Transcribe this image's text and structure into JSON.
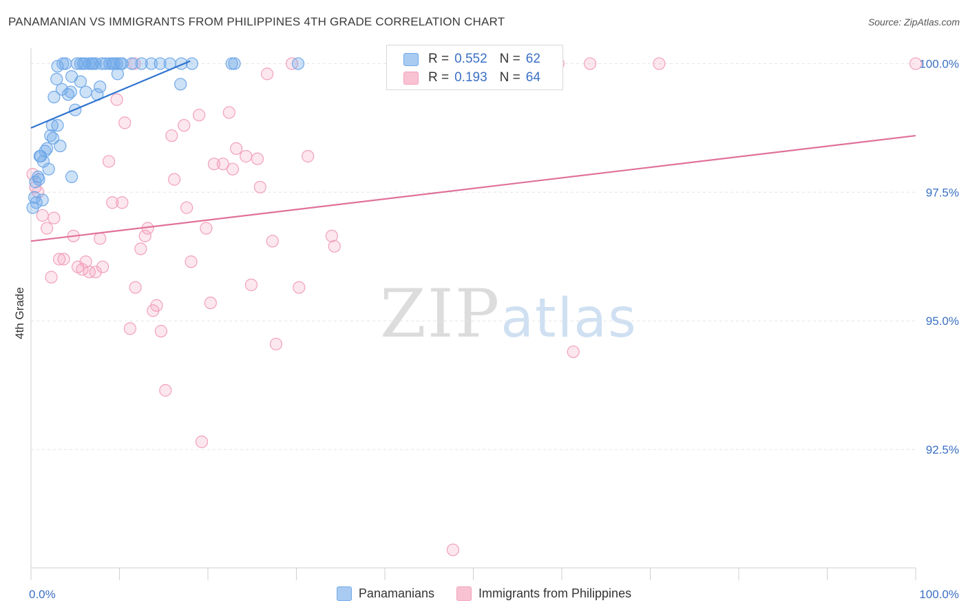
{
  "title": "PANAMANIAN VS IMMIGRANTS FROM PHILIPPINES 4TH GRADE CORRELATION CHART",
  "source": "Source: ZipAtlas.com",
  "watermark": {
    "zip": "ZIP",
    "atlas": "atlas"
  },
  "colors": {
    "blue": "#6fa8e8",
    "blue_line": "#2f74d0",
    "pink": "#f2a0ba",
    "pink_line": "#e0709a",
    "tick_label": "#3a6fc4"
  },
  "legend_top": [
    {
      "r_label": "R =",
      "r": "0.552",
      "n_label": "N =",
      "n": "62",
      "color": "#a9cbf2",
      "border": "#6fa8e8"
    },
    {
      "r_label": "R =",
      "r": "0.193",
      "n_label": "N =",
      "n": "64",
      "color": "#f8c2d2",
      "border": "#f2a0ba"
    }
  ],
  "legend_bottom": [
    {
      "label": "Panamanians",
      "color": "#a9cbf2",
      "border": "#6fa8e8"
    },
    {
      "label": "Immigrants from Philippines",
      "color": "#f8c2d2",
      "border": "#f2a0ba"
    }
  ],
  "chart_data": {
    "type": "scatter",
    "title": "PANAMANIAN VS IMMIGRANTS FROM PHILIPPINES 4TH GRADE CORRELATION CHART",
    "xlabel": "",
    "ylabel": "4th Grade",
    "xlim": [
      0,
      100
    ],
    "ylim": [
      90.2,
      100.3
    ],
    "x_tick_labels": [
      "0.0%",
      "100.0%"
    ],
    "y_ticks": [
      100.0,
      97.5,
      95.0,
      92.5
    ],
    "y_tick_labels": [
      "100.0%",
      "97.5%",
      "95.0%",
      "92.5%"
    ],
    "grid": true,
    "series": [
      {
        "name": "Panamanians",
        "r": 0.552,
        "n": 62,
        "trend": {
          "x": [
            0,
            18
          ],
          "y": [
            98.75,
            100.05
          ]
        },
        "points": [
          [
            0.2,
            97.2
          ],
          [
            0.4,
            97.4
          ],
          [
            0.5,
            97.7
          ],
          [
            0.8,
            97.8
          ],
          [
            1.0,
            98.2
          ],
          [
            1.4,
            98.1
          ],
          [
            1.6,
            98.3
          ],
          [
            2.0,
            97.95
          ],
          [
            1.8,
            98.35
          ],
          [
            2.2,
            98.6
          ],
          [
            2.4,
            98.8
          ],
          [
            2.5,
            98.55
          ],
          [
            3.0,
            98.8
          ],
          [
            3.3,
            98.4
          ],
          [
            2.6,
            99.35
          ],
          [
            3.5,
            99.5
          ],
          [
            4.2,
            99.4
          ],
          [
            4.5,
            99.45
          ],
          [
            4.6,
            99.75
          ],
          [
            5.0,
            99.1
          ],
          [
            5.6,
            99.65
          ],
          [
            6.2,
            99.45
          ],
          [
            7.5,
            99.4
          ],
          [
            7.8,
            99.55
          ],
          [
            9.8,
            99.8
          ],
          [
            2.9,
            99.7
          ],
          [
            3.0,
            99.95
          ],
          [
            3.6,
            100.0
          ],
          [
            3.9,
            100.0
          ],
          [
            5.2,
            100.0
          ],
          [
            5.6,
            100.0
          ],
          [
            5.9,
            100.0
          ],
          [
            6.1,
            100.0
          ],
          [
            7.0,
            100.0
          ],
          [
            7.3,
            100.0
          ],
          [
            8.4,
            100.0
          ],
          [
            8.9,
            100.0
          ],
          [
            9.2,
            100.0
          ],
          [
            9.7,
            100.0
          ],
          [
            10.1,
            100.0
          ],
          [
            11.4,
            100.0
          ],
          [
            12.5,
            100.0
          ],
          [
            13.6,
            100.0
          ],
          [
            14.6,
            100.0
          ],
          [
            15.7,
            100.0
          ],
          [
            18.2,
            100.0
          ],
          [
            22.7,
            100.0
          ],
          [
            23.0,
            100.0
          ],
          [
            30.2,
            100.0
          ],
          [
            41.7,
            100.0
          ],
          [
            16.9,
            99.6
          ],
          [
            4.6,
            97.8
          ],
          [
            1.3,
            97.35
          ],
          [
            0.9,
            97.75
          ],
          [
            6.6,
            100.0
          ],
          [
            8.0,
            100.0
          ],
          [
            6.9,
            100.0
          ],
          [
            10.3,
            100.0
          ],
          [
            9.4,
            100.0
          ],
          [
            1.1,
            98.2
          ],
          [
            0.6,
            97.3
          ],
          [
            17.0,
            100.0
          ]
        ]
      },
      {
        "name": "Immigrants from Philippines",
        "r": 0.193,
        "n": 64,
        "trend": {
          "x": [
            0,
            100
          ],
          "y": [
            96.55,
            98.6
          ]
        },
        "points": [
          [
            0.2,
            97.85
          ],
          [
            0.5,
            97.6
          ],
          [
            0.8,
            97.5
          ],
          [
            1.3,
            97.05
          ],
          [
            1.8,
            96.8
          ],
          [
            2.6,
            97.0
          ],
          [
            2.3,
            95.85
          ],
          [
            3.2,
            96.2
          ],
          [
            3.7,
            96.2
          ],
          [
            4.8,
            96.65
          ],
          [
            5.3,
            96.05
          ],
          [
            5.8,
            96.0
          ],
          [
            6.2,
            96.15
          ],
          [
            6.6,
            95.95
          ],
          [
            7.3,
            95.95
          ],
          [
            7.8,
            96.6
          ],
          [
            8.1,
            96.05
          ],
          [
            8.8,
            98.1
          ],
          [
            9.2,
            97.3
          ],
          [
            9.7,
            99.3
          ],
          [
            10.3,
            97.3
          ],
          [
            10.6,
            98.85
          ],
          [
            11.2,
            94.85
          ],
          [
            11.8,
            95.65
          ],
          [
            12.4,
            96.4
          ],
          [
            12.9,
            96.65
          ],
          [
            13.2,
            96.8
          ],
          [
            13.8,
            95.2
          ],
          [
            14.2,
            95.3
          ],
          [
            14.7,
            94.8
          ],
          [
            15.2,
            93.65
          ],
          [
            15.9,
            98.6
          ],
          [
            16.2,
            97.75
          ],
          [
            17.3,
            98.8
          ],
          [
            17.6,
            97.2
          ],
          [
            18.1,
            96.15
          ],
          [
            19.0,
            99.0
          ],
          [
            19.3,
            92.65
          ],
          [
            19.8,
            96.8
          ],
          [
            20.3,
            95.35
          ],
          [
            20.7,
            98.05
          ],
          [
            21.7,
            98.05
          ],
          [
            22.4,
            99.05
          ],
          [
            22.8,
            97.95
          ],
          [
            23.2,
            98.35
          ],
          [
            24.3,
            98.2
          ],
          [
            24.9,
            95.7
          ],
          [
            25.6,
            98.15
          ],
          [
            25.9,
            97.6
          ],
          [
            26.7,
            99.8
          ],
          [
            27.3,
            96.55
          ],
          [
            27.7,
            94.55
          ],
          [
            29.5,
            100.0
          ],
          [
            30.3,
            95.65
          ],
          [
            31.3,
            98.2
          ],
          [
            34.0,
            96.65
          ],
          [
            34.3,
            96.45
          ],
          [
            47.7,
            90.55
          ],
          [
            59.6,
            100.0
          ],
          [
            61.3,
            94.4
          ],
          [
            63.2,
            100.0
          ],
          [
            71.0,
            100.0
          ],
          [
            100.0,
            100.0
          ],
          [
            11.7,
            100.0
          ]
        ]
      }
    ]
  }
}
